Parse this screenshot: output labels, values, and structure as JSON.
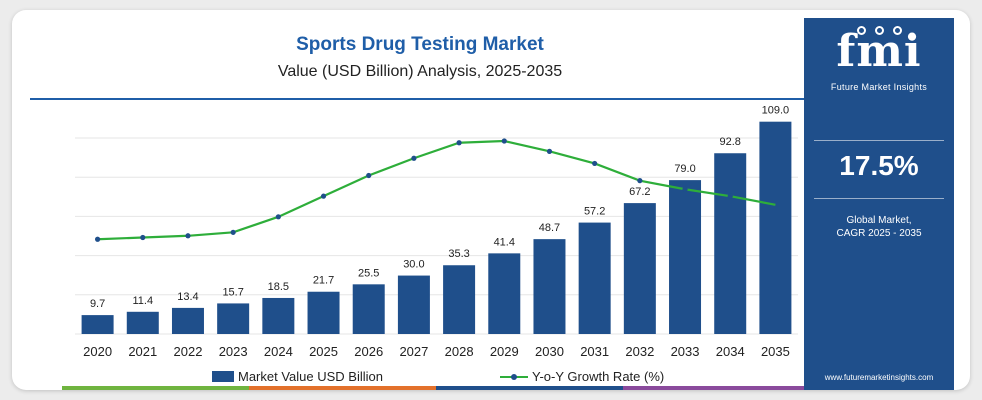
{
  "header": {
    "title": "Sports Drug Testing Market",
    "subtitle": "Value (USD Billion) Analysis, 2025-2035"
  },
  "legend": {
    "bar_label": "Market Value USD Billion",
    "line_label": "Y-o-Y Growth Rate (%)"
  },
  "sidebar": {
    "logo_text": "fmi",
    "logo_tagline": "Future Market Insights",
    "cagr_value": "17.5%",
    "cagr_label_line1": "Global Market,",
    "cagr_label_line2": "CAGR 2025 - 2035",
    "website": "www.futuremarketinsights.com"
  },
  "colors": {
    "bar": "#1f4f8b",
    "line": "#2eae3a",
    "title": "#1f5ea8",
    "sidebar_bg": "#1f4f8b",
    "strip": [
      "#6fb43f",
      "#e3712b",
      "#1f4f8b",
      "#8a4a9c"
    ]
  },
  "chart_data": {
    "type": "bar",
    "title": "Sports Drug Testing Market",
    "subtitle": "Value (USD Billion) Analysis, 2025-2035",
    "categories": [
      "2020",
      "2021",
      "2022",
      "2023",
      "2024",
      "2025",
      "2026",
      "2027",
      "2028",
      "2029",
      "2030",
      "2031",
      "2032",
      "2033",
      "2034",
      "2035"
    ],
    "series": [
      {
        "name": "Market Value USD Billion",
        "type": "bar",
        "values": [
          9.7,
          11.4,
          13.4,
          15.7,
          18.5,
          21.7,
          25.5,
          30.0,
          35.3,
          41.4,
          48.7,
          57.2,
          67.2,
          79.0,
          92.8,
          109.0
        ],
        "value_labels": [
          "9.7",
          "11.4",
          "13.4",
          "15.7",
          "18.5",
          "21.7",
          "25.5",
          "30.0",
          "35.3",
          "41.4",
          "48.7",
          "57.2",
          "67.2",
          "79.0",
          "92.8",
          "109.0"
        ]
      },
      {
        "name": "Y-o-Y Growth Rate (%)",
        "type": "line",
        "values": [
          17.5,
          17.6,
          17.7,
          17.9,
          18.8,
          20.0,
          21.2,
          22.2,
          23.1,
          23.2,
          22.6,
          21.9,
          20.9,
          20.4,
          20.0,
          19.5
        ]
      }
    ],
    "ylim": [
      0,
      115
    ],
    "line_ylim": [
      12,
      25
    ],
    "grid": true,
    "legend": "bottom"
  }
}
